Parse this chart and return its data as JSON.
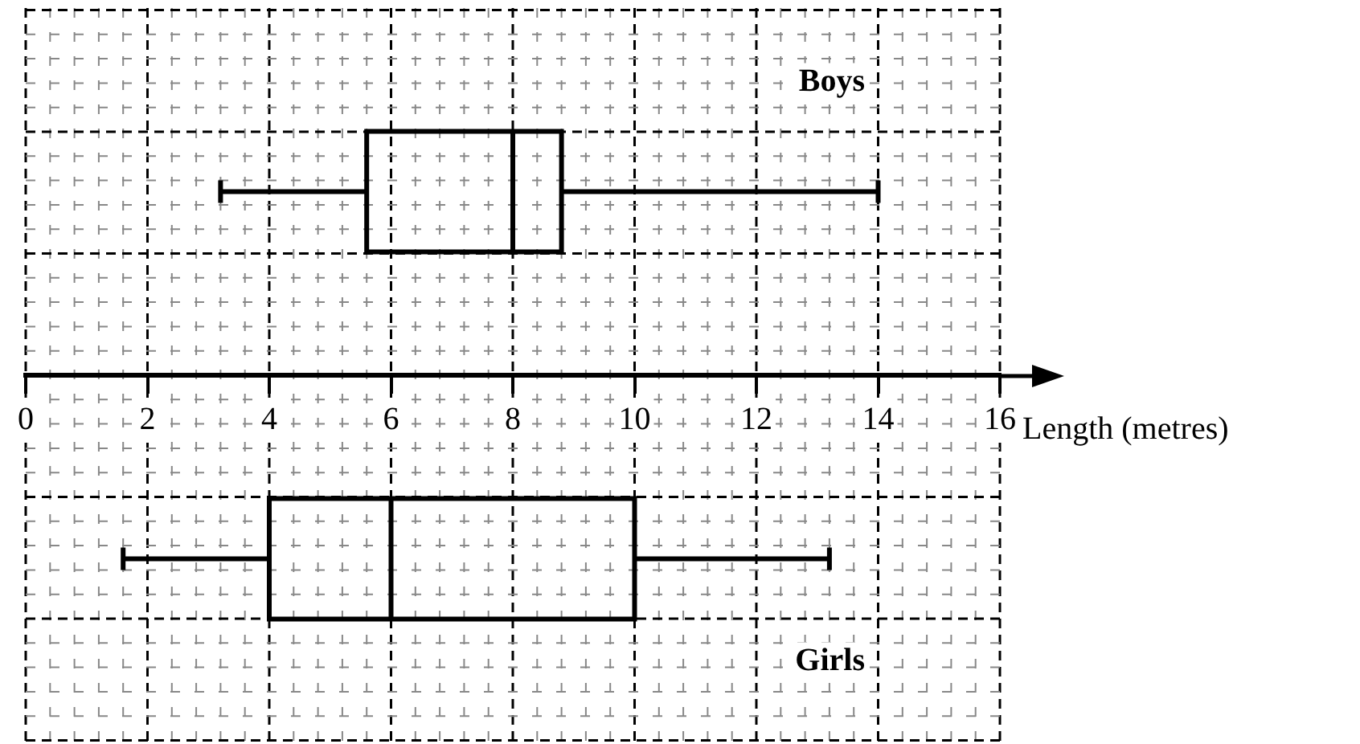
{
  "chart_data": {
    "type": "box",
    "orientation": "horizontal",
    "categories": [
      "Boys",
      "Girls"
    ],
    "color": "#000000",
    "boxes": [
      {
        "low": 3.2,
        "q1": 5.6,
        "median": 8,
        "q3": 8.8,
        "high": 14
      },
      {
        "low": 1.6,
        "q1": 4,
        "median": 6,
        "q3": 10,
        "high": 13.2
      }
    ],
    "xlim": [
      0,
      16
    ],
    "xticks": [
      0,
      2,
      4,
      6,
      8,
      10,
      12,
      14,
      16
    ],
    "xlabel": "Length (metres)",
    "grid": true,
    "legend": false
  }
}
